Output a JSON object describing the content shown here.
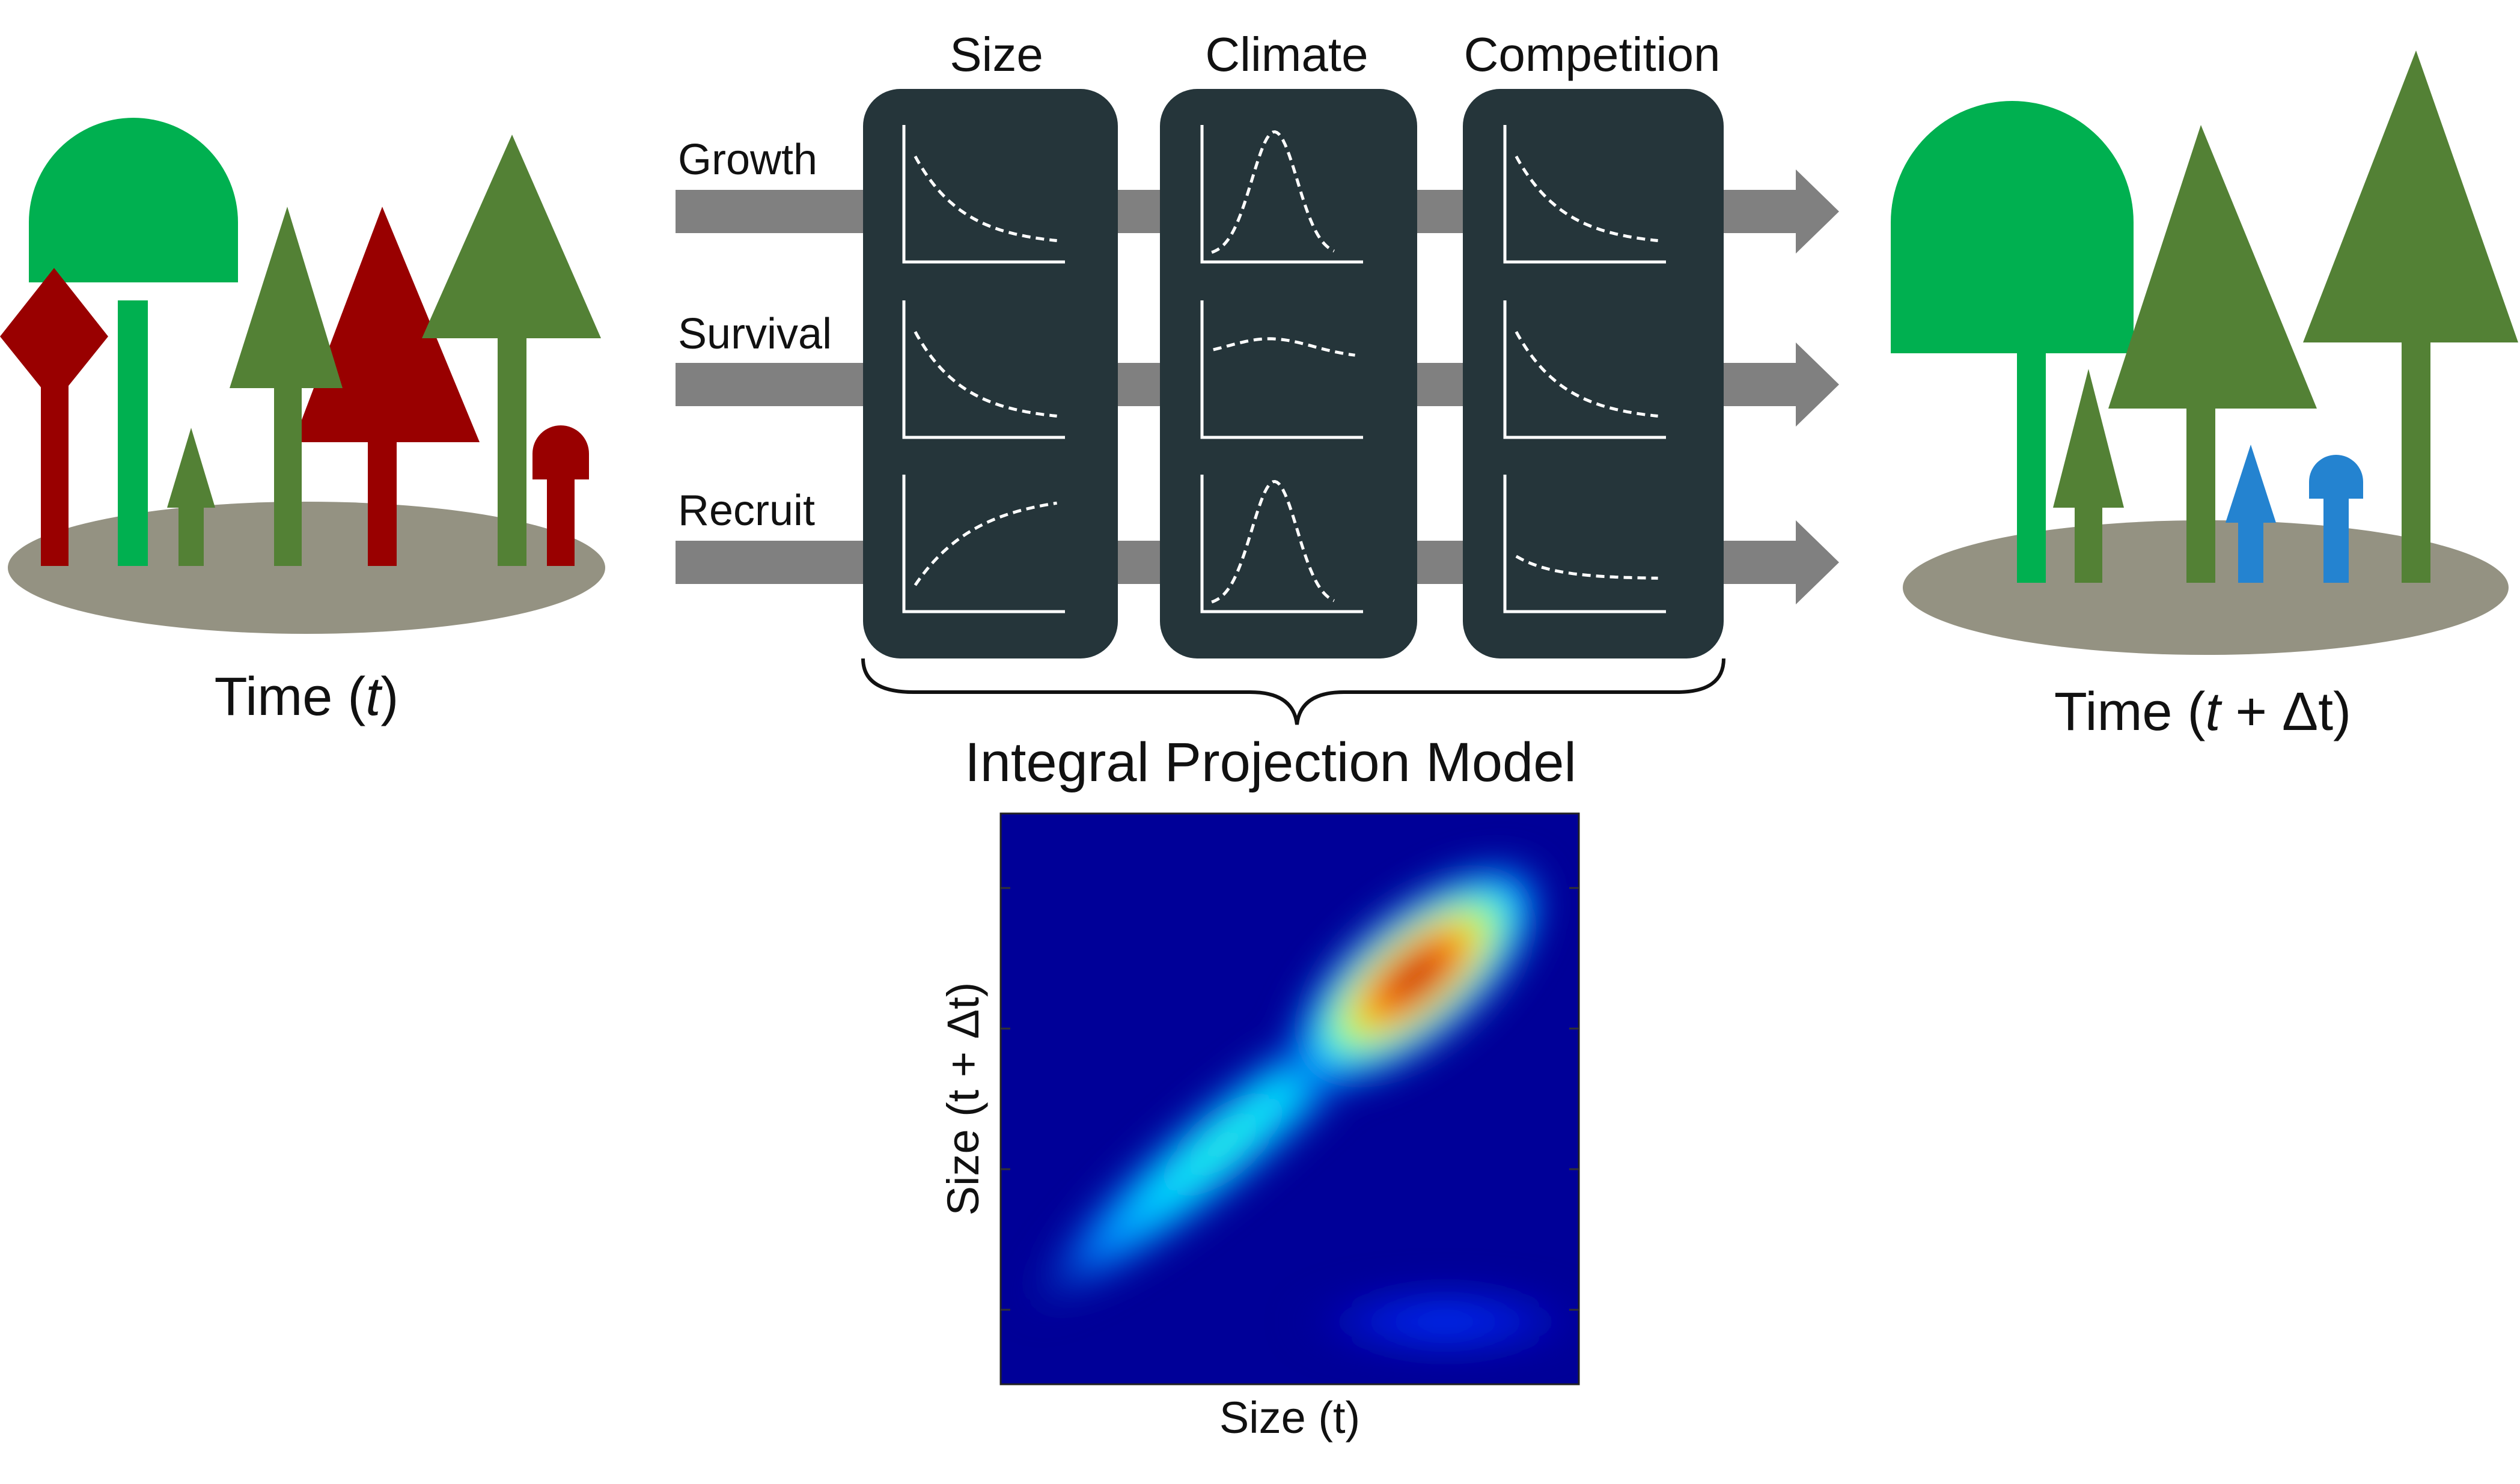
{
  "columns": [
    {
      "key": "size",
      "label": "Size"
    },
    {
      "key": "climate",
      "label": "Climate"
    },
    {
      "key": "competition",
      "label": "Competition"
    }
  ],
  "rows": [
    {
      "key": "growth",
      "label": "Growth"
    },
    {
      "key": "survival",
      "label": "Survival"
    },
    {
      "key": "recruit",
      "label": "Recruit"
    }
  ],
  "curves": [
    [
      "decay",
      "peak",
      "decay"
    ],
    [
      "decay",
      "flat-hump",
      "decay"
    ],
    [
      "saturating",
      "peak",
      "shallow-decay"
    ]
  ],
  "left_caption": {
    "prefix": "Time (",
    "italic": "t",
    "suffix": ")"
  },
  "right_caption": {
    "prefix": "Time (",
    "italic": "t",
    "suffix": " + Δt)"
  },
  "model_title": "Integral Projection Model",
  "heatmap": {
    "xlabel": "Size (t)",
    "ylabel": "Size (t + Δt)",
    "colormap": "jet"
  },
  "colors": {
    "panel": "#25353a",
    "arrow": "#808080",
    "ground": "#949282",
    "green_bright": "#00b050",
    "green_olive": "#538135",
    "red_dark": "#990000",
    "blue": "#2483d0"
  }
}
